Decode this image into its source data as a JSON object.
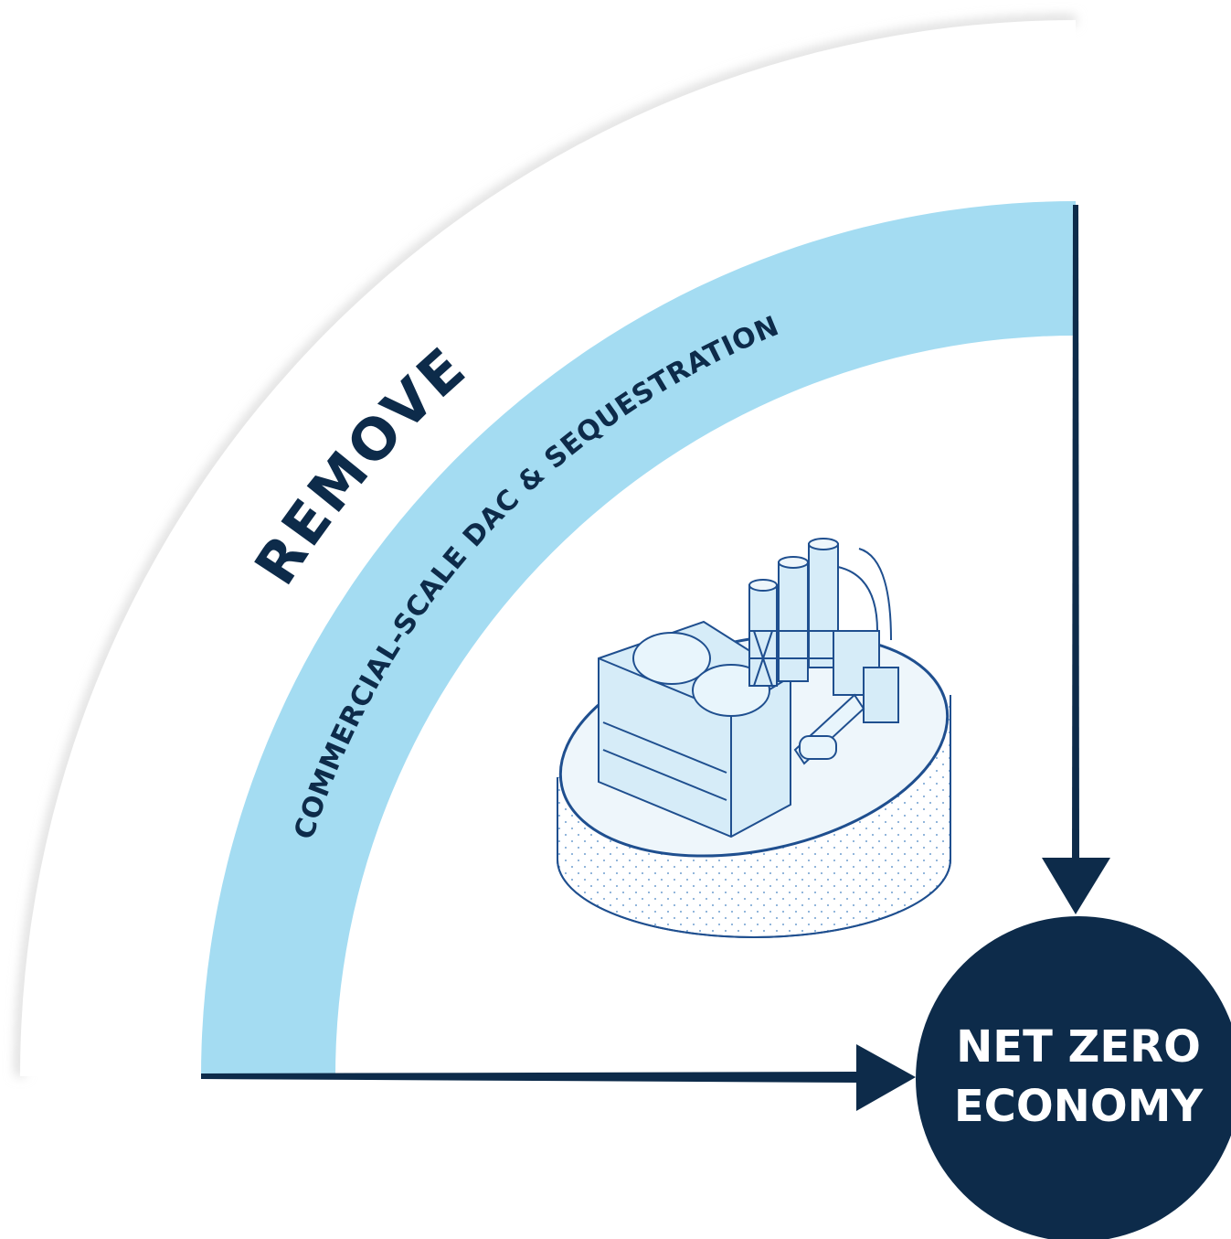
{
  "outer_label": "REMOVE",
  "band_label": "COMMERCIAL-SCALE DAC & SEQUESTRATION",
  "target": {
    "lines": [
      "NET ZERO",
      "ECONOMY"
    ]
  }
}
